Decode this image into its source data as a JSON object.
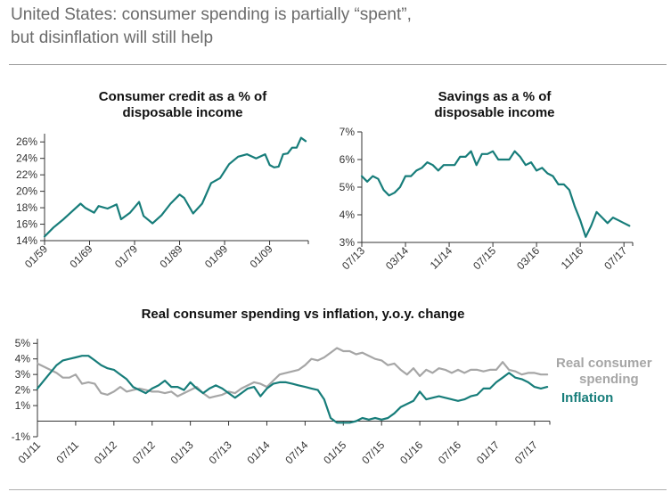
{
  "page": {
    "title_line1": "United States: consumer spending is partially “spent”,",
    "title_line2": "but disinflation will still help"
  },
  "colors": {
    "teal": "#177d7a",
    "gray": "#a6a6a6",
    "axis": "#333333",
    "grid": "#dddddd"
  },
  "chart_data": [
    {
      "type": "line",
      "title": "Consumer credit as a % of disposable income",
      "title_lines": [
        "Consumer credit as a % of",
        "disposable income"
      ],
      "x": [
        1959,
        1961,
        1963,
        1965,
        1967,
        1968,
        1970,
        1971,
        1973,
        1975,
        1976,
        1978,
        1980,
        1981,
        1983,
        1985,
        1987,
        1989,
        1990,
        1992,
        1994,
        1996,
        1998,
        2000,
        2002,
        2004,
        2006,
        2008,
        2009,
        2010,
        2011,
        2012,
        2013,
        2014,
        2015,
        2016,
        2017
      ],
      "series": [
        {
          "name": "Consumer credit",
          "values": [
            14.5,
            15.6,
            16.5,
            17.5,
            18.5,
            18.0,
            17.4,
            18.2,
            17.9,
            18.4,
            16.6,
            17.4,
            18.7,
            17.0,
            16.1,
            17.1,
            18.5,
            19.6,
            19.2,
            17.3,
            18.5,
            21.0,
            21.6,
            23.3,
            24.2,
            24.5,
            24.0,
            24.5,
            23.2,
            22.9,
            23.0,
            24.5,
            24.6,
            25.3,
            25.3,
            26.5,
            26.1
          ]
        }
      ],
      "xtick_labels": [
        "01/59",
        "01/69",
        "01/79",
        "01/89",
        "01/99",
        "01/09"
      ],
      "xtick_values": [
        1959,
        1969,
        1979,
        1989,
        1999,
        2009
      ],
      "xlim": [
        1959,
        2017.6
      ],
      "yticks": [
        14,
        16,
        18,
        20,
        22,
        24,
        26
      ],
      "ytick_labels": [
        "14%",
        "16%",
        "18%",
        "20%",
        "22%",
        "24%",
        "26%"
      ],
      "ylim": [
        14,
        27
      ]
    },
    {
      "type": "line",
      "title": "Savings as a % of disposable income",
      "title_lines": [
        "Savings as a % of",
        "disposable income"
      ],
      "x": [
        0,
        1,
        2,
        3,
        4,
        5,
        6,
        7,
        8,
        9,
        10,
        11,
        12,
        13,
        14,
        15,
        16,
        17,
        18,
        19,
        20,
        21,
        22,
        23,
        24,
        25,
        26,
        27,
        28,
        29,
        30,
        31,
        32,
        33,
        34,
        35,
        36,
        37,
        38,
        39,
        40,
        41,
        42,
        43,
        44,
        45,
        46,
        47,
        48,
        49
      ],
      "series": [
        {
          "name": "Savings rate",
          "values": [
            5.4,
            5.2,
            5.4,
            5.3,
            4.9,
            4.7,
            4.8,
            5.0,
            5.4,
            5.4,
            5.6,
            5.7,
            5.9,
            5.8,
            5.6,
            5.8,
            5.8,
            5.8,
            6.1,
            6.1,
            6.3,
            5.8,
            6.2,
            6.2,
            6.3,
            6.0,
            6.0,
            6.0,
            6.3,
            6.1,
            5.8,
            5.9,
            5.6,
            5.7,
            5.5,
            5.4,
            5.1,
            5.1,
            4.9,
            4.3,
            3.8,
            3.2,
            3.6,
            4.1,
            3.9,
            3.7,
            3.9,
            3.8,
            3.7,
            3.6
          ]
        }
      ],
      "xtick_labels": [
        "07/13",
        "03/14",
        "11/14",
        "07/15",
        "03/16",
        "11/16",
        "07/17"
      ],
      "xtick_values": [
        0,
        8,
        16,
        24,
        32,
        40,
        48
      ],
      "xlim": [
        0,
        49.6
      ],
      "yticks": [
        3,
        4,
        5,
        6,
        7
      ],
      "ytick_labels": [
        "3%",
        "4%",
        "5%",
        "6%",
        "7%"
      ],
      "ylim": [
        3,
        7
      ]
    },
    {
      "type": "line",
      "title": "Real consumer spending vs inflation, y.o.y. change",
      "x": [
        0,
        1,
        2,
        3,
        4,
        5,
        6,
        7,
        8,
        9,
        10,
        11,
        12,
        13,
        14,
        15,
        16,
        17,
        18,
        19,
        20,
        21,
        22,
        23,
        24,
        25,
        26,
        27,
        28,
        29,
        30,
        31,
        32,
        33,
        34,
        35,
        36,
        37,
        38,
        39,
        40,
        41,
        42,
        43,
        44,
        45,
        46,
        47,
        48,
        49,
        50,
        51,
        52,
        53,
        54,
        55,
        56,
        57,
        58,
        59,
        60,
        61,
        62,
        63,
        64,
        65,
        66,
        67,
        68,
        69,
        70,
        71,
        72,
        73,
        74,
        75,
        76,
        77,
        78,
        79,
        80
      ],
      "series": [
        {
          "name": "Real consumer spending",
          "color_key": "gray",
          "values": [
            3.7,
            3.5,
            3.3,
            3.1,
            2.8,
            2.8,
            3.0,
            2.4,
            2.5,
            2.4,
            1.8,
            1.7,
            1.9,
            2.2,
            1.9,
            2.0,
            2.1,
            2.0,
            1.9,
            1.9,
            1.8,
            1.9,
            1.6,
            1.8,
            2.0,
            2.2,
            1.8,
            1.5,
            1.6,
            1.7,
            1.9,
            1.8,
            2.1,
            2.3,
            2.5,
            2.4,
            2.2,
            2.6,
            3.0,
            3.1,
            3.2,
            3.3,
            3.6,
            4.0,
            3.9,
            4.1,
            4.4,
            4.7,
            4.5,
            4.5,
            4.3,
            4.4,
            4.2,
            4.0,
            3.9,
            3.6,
            3.7,
            3.3,
            3.0,
            3.4,
            2.9,
            3.3,
            3.1,
            3.4,
            3.3,
            3.1,
            3.3,
            3.1,
            3.3,
            3.3,
            3.2,
            3.3,
            3.3,
            3.8,
            3.3,
            3.2,
            3.0,
            3.1,
            3.1,
            3.0,
            3.0
          ]
        },
        {
          "name": "Inflation",
          "color_key": "teal",
          "values": [
            2.1,
            2.6,
            3.1,
            3.6,
            3.9,
            4.0,
            4.1,
            4.2,
            4.2,
            3.9,
            3.6,
            3.4,
            3.3,
            3.0,
            2.7,
            2.2,
            2.0,
            1.8,
            2.1,
            2.3,
            2.6,
            2.2,
            2.2,
            2.0,
            2.5,
            2.1,
            1.8,
            2.1,
            2.3,
            2.1,
            1.8,
            1.5,
            1.8,
            2.1,
            2.2,
            1.6,
            2.1,
            2.4,
            2.5,
            2.5,
            2.4,
            2.3,
            2.2,
            2.1,
            2.0,
            1.4,
            0.2,
            -0.1,
            -0.1,
            -0.1,
            0.0,
            0.2,
            0.1,
            0.2,
            0.1,
            0.2,
            0.5,
            0.9,
            1.1,
            1.3,
            1.9,
            1.4,
            1.5,
            1.6,
            1.5,
            1.4,
            1.3,
            1.4,
            1.6,
            1.7,
            2.1,
            2.1,
            2.5,
            2.8,
            3.1,
            2.8,
            2.7,
            2.5,
            2.2,
            2.1,
            2.2
          ]
        }
      ],
      "xtick_labels": [
        "01/11",
        "07/11",
        "01/12",
        "07/12",
        "01/13",
        "07/13",
        "01/14",
        "07/14",
        "01/15",
        "07/15",
        "01/16",
        "07/16",
        "01/17",
        "07/17"
      ],
      "xtick_values": [
        0,
        6,
        12,
        18,
        24,
        30,
        36,
        42,
        48,
        54,
        60,
        66,
        72,
        78
      ],
      "xlim": [
        0,
        80.4
      ],
      "yticks": [
        -1,
        1,
        2,
        3,
        4,
        5
      ],
      "ytick_labels": [
        "-1%",
        "1%",
        "2%",
        "3%",
        "4%",
        "5%"
      ],
      "zero_line": 0,
      "ylim": [
        -1,
        5.3
      ],
      "legend": {
        "spending_line1": "Real consumer",
        "spending_line2": "spending",
        "inflation": "Inflation",
        "placement": "right"
      }
    }
  ]
}
